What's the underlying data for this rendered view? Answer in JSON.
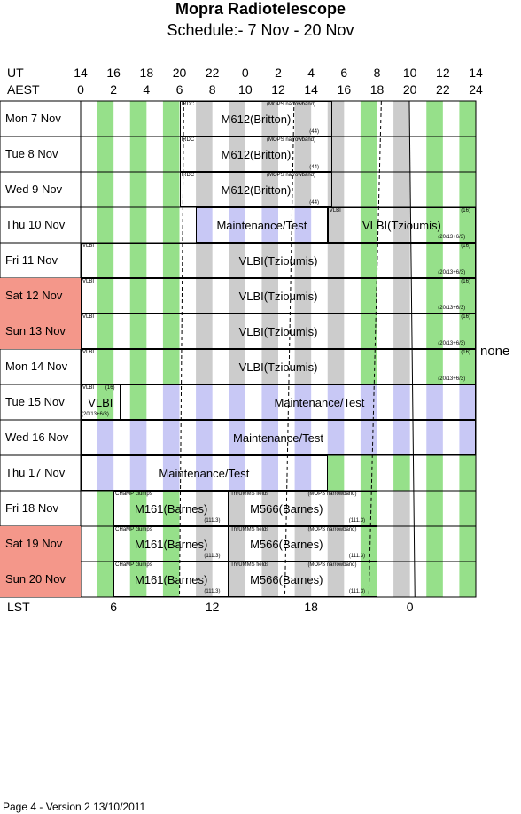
{
  "title": "Mopra Radiotelescope",
  "subtitle": "Schedule:- 7  Nov - 20 Nov",
  "header": {
    "ut_label": "UT",
    "aest_label": "AEST",
    "lst_label": "LST",
    "ut_ticks": [
      "14",
      "16",
      "18",
      "20",
      "22",
      "0",
      "2",
      "4",
      "6",
      "8",
      "10",
      "12",
      "14"
    ],
    "aest_ticks": [
      "0",
      "2",
      "4",
      "6",
      "8",
      "10",
      "12",
      "14",
      "16",
      "18",
      "20",
      "22",
      "24"
    ],
    "lst_ticks": [
      "6",
      "12",
      "18",
      "0"
    ]
  },
  "side_note": "none",
  "colors": {
    "weekend": "#f4978a",
    "day_stripe": "#96e08a",
    "night_stripe": "#cccccc",
    "maint_stripe": "#c8c8f5"
  },
  "days": [
    {
      "label": "Mon   7  Nov",
      "weekend": false
    },
    {
      "label": "Tue    8  Nov",
      "weekend": false
    },
    {
      "label": "Wed   9  Nov",
      "weekend": false
    },
    {
      "label": "Thu   10  Nov",
      "weekend": false
    },
    {
      "label": "Fri    11  Nov",
      "weekend": false
    },
    {
      "label": "Sat   12  Nov",
      "weekend": true
    },
    {
      "label": "Sun   13  Nov",
      "weekend": true
    },
    {
      "label": "Mon   14  Nov",
      "weekend": false
    },
    {
      "label": "Tue   15  Nov",
      "weekend": false
    },
    {
      "label": "Wed  16  Nov",
      "weekend": false
    },
    {
      "label": "Thu   17  Nov",
      "weekend": false
    },
    {
      "label": "Fri    18  Nov",
      "weekend": false
    },
    {
      "label": "Sat   19  Nov",
      "weekend": true
    },
    {
      "label": "Sun   20  Nov",
      "weekend": true
    }
  ],
  "projects": {
    "m612": "M612(Britton)",
    "irdc": "IRDC",
    "mops": "(MOPS narrowband)",
    "n44": "(44)",
    "maint": "Maintenance/Test",
    "vlbi": "VLBI",
    "vlbi_tz": "VLBI(Tzioumis)",
    "n16": "(16)",
    "code_vlbi": "(20/13+6/3)",
    "m161": "M161(Barnes)",
    "champ": "CHaMP clumps",
    "m566": "M566(Barnes)",
    "thrumms": "ThrUMMS fields",
    "n1113": "(111.3)"
  },
  "footer": "Page 4 - Version 2  13/10/2011"
}
